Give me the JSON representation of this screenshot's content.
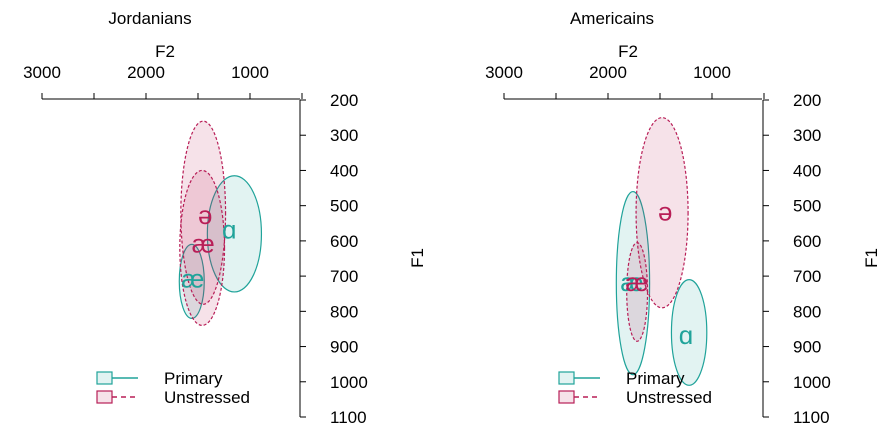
{
  "chart_data": [
    {
      "type": "scatter",
      "title": "Jordanians",
      "xlabel": "F2",
      "ylabel": "F1",
      "x_ticks": [
        3000,
        2000,
        1000
      ],
      "y_ticks": [
        200,
        300,
        400,
        500,
        600,
        700,
        800,
        900,
        1000,
        1100
      ],
      "xlim": [
        3000,
        500
      ],
      "ylim": [
        200,
        1100
      ],
      "legend_position": "bottom-left",
      "series": [
        {
          "name": "Primary",
          "color": "#20a39a",
          "points": [
            {
              "label": "ɑ",
              "x": 1200,
              "y": 570
            },
            {
              "label": "æ",
              "x": 1550,
              "y": 710
            }
          ],
          "ellipses": [
            {
              "label": "ɑ",
              "cx": 1150,
              "cy": 580,
              "sx": 260,
              "sy": 165
            },
            {
              "label": "æ",
              "cx": 1560,
              "cy": 715,
              "sx": 120,
              "sy": 105
            }
          ]
        },
        {
          "name": "Unstressed",
          "color": "#b81e57",
          "points": [
            {
              "label": "ə",
              "x": 1430,
              "y": 530
            },
            {
              "label": "æ",
              "x": 1450,
              "y": 610
            }
          ],
          "ellipses": [
            {
              "label": "ə",
              "cx": 1450,
              "cy": 520,
              "sx": 215,
              "sy": 260
            },
            {
              "label": "æ",
              "cx": 1460,
              "cy": 620,
              "sx": 215,
              "sy": 220
            }
          ]
        }
      ]
    },
    {
      "type": "scatter",
      "title": "Americains",
      "xlabel": "F2",
      "ylabel": "F1",
      "x_ticks": [
        3000,
        2000,
        1000
      ],
      "y_ticks": [
        200,
        300,
        400,
        500,
        600,
        700,
        800,
        900,
        1000,
        1100
      ],
      "xlim": [
        3000,
        500
      ],
      "ylim": [
        200,
        1100
      ],
      "legend_position": "bottom-left",
      "series": [
        {
          "name": "Primary",
          "color": "#20a39a",
          "points": [
            {
              "label": "ɑ",
              "x": 1250,
              "y": 870
            },
            {
              "label": "æ",
              "x": 1770,
              "y": 720
            }
          ],
          "ellipses": [
            {
              "label": "ɑ",
              "cx": 1220,
              "cy": 860,
              "sx": 170,
              "sy": 150
            },
            {
              "label": "æ",
              "cx": 1760,
              "cy": 720,
              "sx": 160,
              "sy": 260
            }
          ]
        },
        {
          "name": "Unstressed",
          "color": "#b81e57",
          "points": [
            {
              "label": "ə",
              "x": 1450,
              "y": 520
            },
            {
              "label": "æ",
              "x": 1720,
              "y": 720
            }
          ],
          "ellipses": [
            {
              "label": "ə",
              "cx": 1480,
              "cy": 520,
              "sx": 250,
              "sy": 270
            },
            {
              "label": "æ",
              "cx": 1720,
              "cy": 745,
              "sx": 100,
              "sy": 140
            }
          ]
        }
      ]
    }
  ]
}
